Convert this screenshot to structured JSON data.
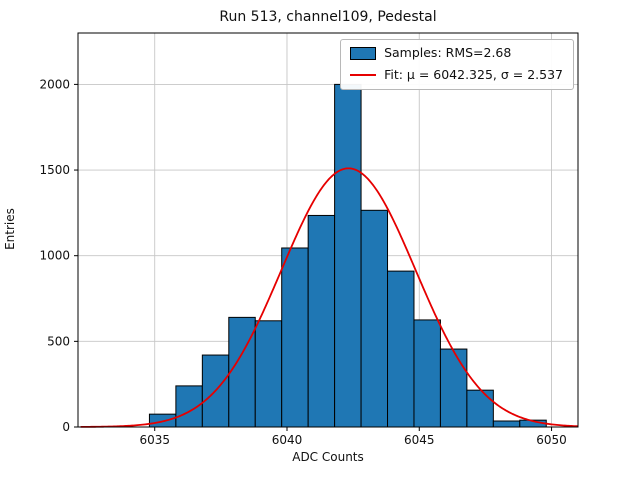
{
  "chart_data": {
    "type": "bar",
    "subtype": "histogram-with-gaussian-fit",
    "title": "Run 513, channel109, Pedestal",
    "xlabel": "ADC Counts",
    "ylabel": "Entries",
    "xlim": [
      6032.1,
      6051.0
    ],
    "ylim": [
      0,
      2300
    ],
    "xticks": [
      6035,
      6040,
      6045,
      6050
    ],
    "yticks": [
      0,
      500,
      1000,
      1500,
      2000
    ],
    "grid": true,
    "legend_position": "upper right",
    "bin_start": 6034.8,
    "bin_width": 1.0,
    "values": [
      75,
      240,
      420,
      640,
      620,
      1045,
      1235,
      2000,
      1265,
      910,
      625,
      455,
      215,
      35,
      40
    ],
    "fit": {
      "mu": 6042.325,
      "sigma": 2.537,
      "amplitude": 1510,
      "x_start": 6032.2,
      "x_end": 6051.0
    },
    "colors": {
      "bar_fill": "#1f77b4",
      "bar_edge": "#000000",
      "fit_line": "#e60000",
      "grid_line": "#c6c6c6",
      "axes_frame": "#000000",
      "text": "#111111"
    },
    "legend": [
      {
        "label": "Samples: RMS=2.68",
        "swatch": "patch"
      },
      {
        "label": "Fit: μ = 6042.325, σ = 2.537",
        "swatch": "line"
      }
    ]
  }
}
